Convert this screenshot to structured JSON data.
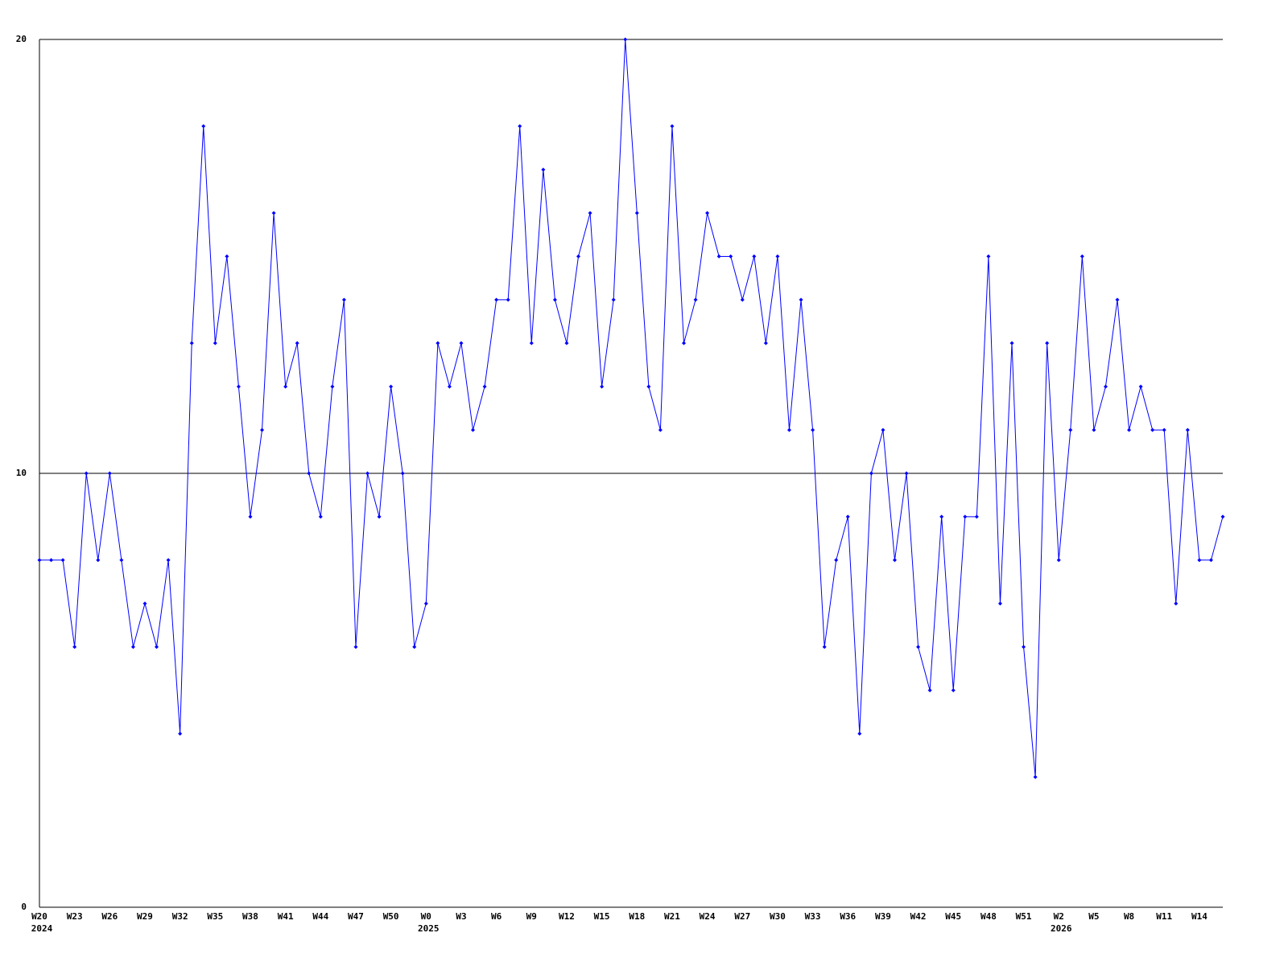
{
  "chart_data": {
    "type": "line",
    "categories": [
      "W20",
      null,
      null,
      "W23",
      null,
      null,
      "W26",
      null,
      null,
      "W29",
      null,
      null,
      "W32",
      null,
      null,
      "W35",
      null,
      null,
      "W38",
      null,
      null,
      "W41",
      null,
      null,
      "W44",
      null,
      null,
      "W47",
      null,
      null,
      "W50",
      null,
      null,
      "W0",
      null,
      null,
      "W3",
      null,
      null,
      "W6",
      null,
      null,
      "W9",
      null,
      null,
      "W12",
      null,
      null,
      "W15",
      null,
      null,
      "W18",
      null,
      null,
      "W21",
      null,
      null,
      "W24",
      null,
      null,
      "W27",
      null,
      null,
      "W30",
      null,
      null,
      "W33",
      null,
      null,
      "W36",
      null,
      null,
      "W39",
      null,
      null,
      "W42",
      null,
      null,
      "W45",
      null,
      null,
      "W48",
      null,
      null,
      "W51",
      null,
      null,
      "W2",
      null,
      null,
      "W5",
      null,
      null,
      "W8",
      null,
      null,
      "W11",
      null,
      null,
      "W14",
      null,
      null
    ],
    "year_labels": [
      {
        "category": "W20",
        "label": "2024"
      },
      {
        "category": "W0",
        "label": "2025"
      },
      {
        "category": "W2",
        "label": "2026"
      }
    ],
    "series": [
      {
        "color": "#0000ff",
        "values": [
          8,
          8,
          8,
          6,
          10,
          8,
          10,
          8,
          6,
          7,
          6,
          8,
          4,
          13,
          18,
          13,
          15,
          12,
          9,
          11,
          16,
          12,
          13,
          10,
          9,
          12,
          14,
          6,
          10,
          9,
          12,
          10,
          6,
          7,
          13,
          12,
          13,
          11,
          12,
          14,
          14,
          18,
          13,
          17,
          14,
          13,
          15,
          16,
          12,
          14,
          20,
          16,
          12,
          11,
          18,
          13,
          14,
          16,
          15,
          15,
          14,
          15,
          13,
          15,
          11,
          14,
          11,
          6,
          8,
          9,
          4,
          10,
          11,
          8,
          10,
          6,
          5,
          9,
          5,
          9,
          9,
          15,
          7,
          13,
          6,
          3,
          13,
          8,
          11,
          15,
          11,
          12,
          14,
          11,
          12,
          11,
          11,
          7,
          11,
          8,
          8,
          9
        ]
      }
    ],
    "ylim": [
      0,
      20
    ],
    "yticks": [
      0,
      10,
      20
    ],
    "grid": true
  }
}
